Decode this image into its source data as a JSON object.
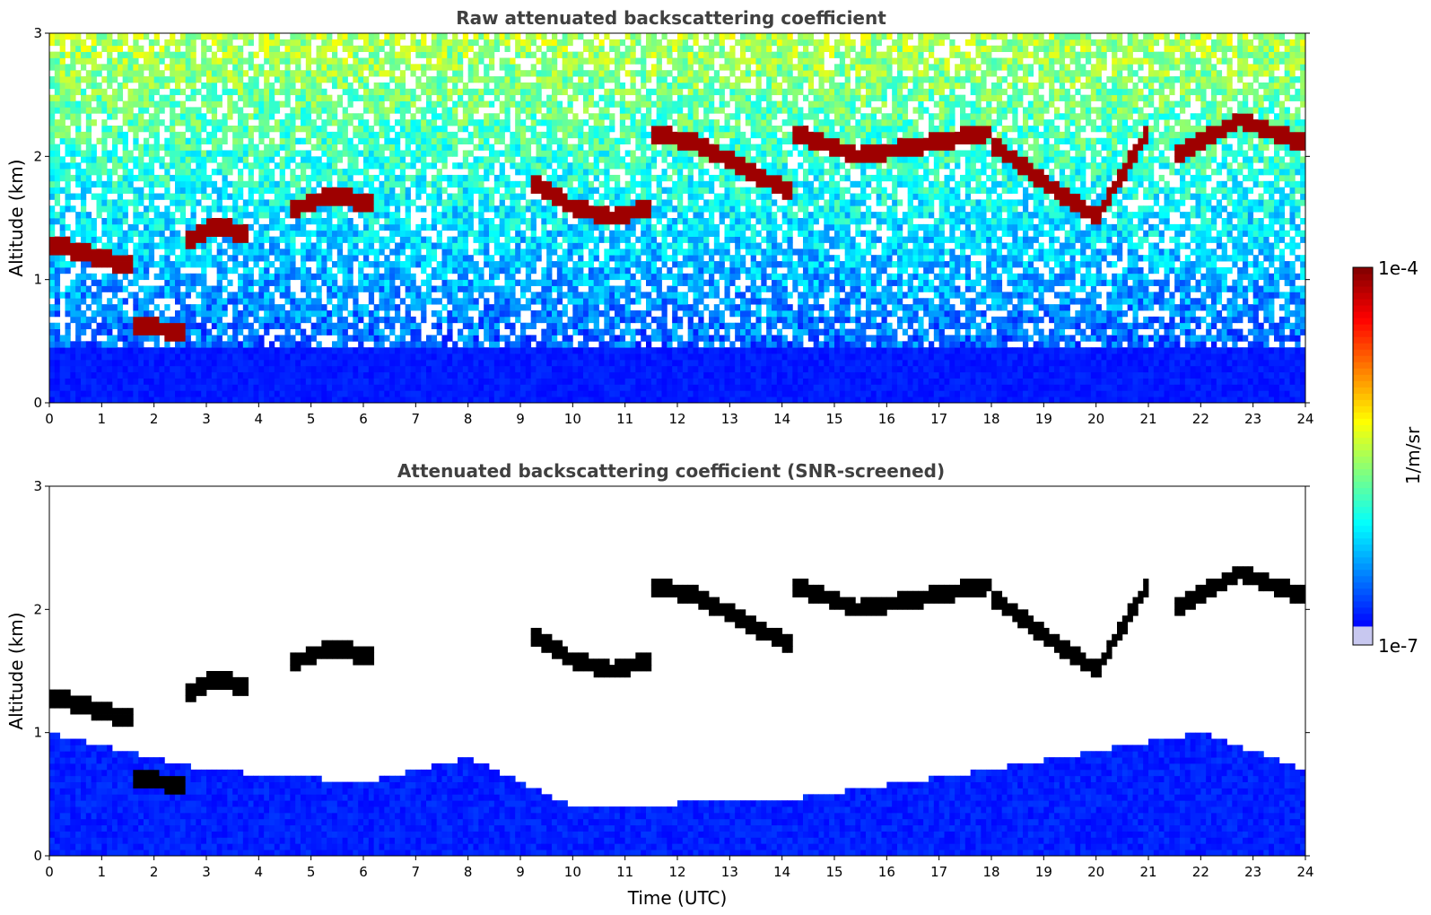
{
  "chart_data": [
    {
      "type": "heatmap",
      "title": "Raw attenuated backscattering coefficient",
      "xlabel": "",
      "ylabel": "Altitude (km)",
      "xlim": [
        0,
        24
      ],
      "ylim": [
        0,
        3
      ],
      "x_ticks": [
        "0",
        "1",
        "2",
        "3",
        "4",
        "5",
        "6",
        "7",
        "8",
        "9",
        "10",
        "11",
        "12",
        "13",
        "14",
        "15",
        "16",
        "17",
        "18",
        "19",
        "20",
        "21",
        "22",
        "23",
        "24"
      ],
      "y_ticks": [
        "0",
        "1",
        "2",
        "3"
      ],
      "screened": false,
      "cloud_layers": [
        {
          "t0": 0.0,
          "t1": 1.6,
          "z": [
            1.3,
            1.25,
            1.2,
            1.15,
            1.1
          ]
        },
        {
          "t0": 1.6,
          "t1": 2.6,
          "z": [
            0.65,
            0.6,
            0.55
          ]
        },
        {
          "t0": 2.6,
          "t1": 3.8,
          "z": [
            1.3,
            1.45,
            1.35
          ]
        },
        {
          "t0": 4.6,
          "t1": 6.2,
          "z": [
            1.55,
            1.7,
            1.6
          ]
        },
        {
          "t0": 9.2,
          "t1": 11.5,
          "z": [
            1.8,
            1.6,
            1.5,
            1.6
          ]
        },
        {
          "t0": 11.5,
          "t1": 14.2,
          "z": [
            2.2,
            2.1,
            1.9,
            1.7
          ]
        },
        {
          "t0": 14.2,
          "t1": 18.0,
          "z": [
            2.2,
            2.0,
            2.1,
            2.2
          ]
        },
        {
          "t0": 18.0,
          "t1": 21.0,
          "z": [
            2.1,
            1.8,
            1.5,
            2.2
          ]
        },
        {
          "t0": 21.5,
          "t1": 24.0,
          "z": [
            2.0,
            2.3,
            2.1
          ]
        }
      ]
    },
    {
      "type": "heatmap",
      "title": "Attenuated backscattering coefficient (SNR-screened)",
      "xlabel": "Time (UTC)",
      "ylabel": "Altitude (km)",
      "xlim": [
        0,
        24
      ],
      "ylim": [
        0,
        3
      ],
      "x_ticks": [
        "0",
        "1",
        "2",
        "3",
        "4",
        "5",
        "6",
        "7",
        "8",
        "9",
        "10",
        "11",
        "12",
        "13",
        "14",
        "15",
        "16",
        "17",
        "18",
        "19",
        "20",
        "21",
        "22",
        "23",
        "24"
      ],
      "y_ticks": [
        "0",
        "1",
        "2",
        "3"
      ],
      "screened": true,
      "boundary_layer_top_km": [
        [
          0,
          1.0
        ],
        [
          3,
          0.7
        ],
        [
          6,
          0.6
        ],
        [
          8,
          0.8
        ],
        [
          10,
          0.4
        ],
        [
          14,
          0.45
        ],
        [
          18,
          0.7
        ],
        [
          22,
          1.0
        ],
        [
          24,
          0.7
        ]
      ]
    }
  ],
  "colorbar": {
    "label": "1/m/sr",
    "max_label": "1e-4",
    "min_label": "1e-7",
    "colormap": "jet"
  }
}
